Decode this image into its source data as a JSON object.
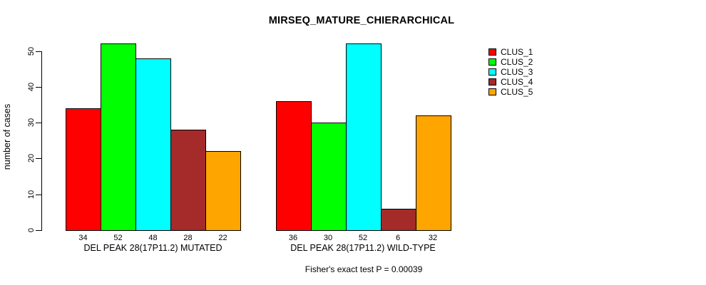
{
  "title": "MIRSEQ_MATURE_CHIERARCHICAL",
  "chart_data": {
    "type": "bar",
    "title": "MIRSEQ_MATURE_CHIERARCHICAL",
    "xlabel": "",
    "ylabel": "number of cases",
    "ylim": [
      0,
      50
    ],
    "yticks": [
      0,
      10,
      20,
      30,
      40,
      50
    ],
    "grid": false,
    "legend_position": "right-outside",
    "annotation": "Fisher's exact test P = 0.00039",
    "categories": [
      "DEL PEAK 28(17P11.2) MUTATED",
      "DEL PEAK 28(17P11.2) WILD-TYPE"
    ],
    "series": [
      {
        "name": "CLUS_1",
        "color": "#FF0000",
        "values": [
          34,
          36
        ]
      },
      {
        "name": "CLUS_2",
        "color": "#00FF00",
        "values": [
          52,
          30
        ]
      },
      {
        "name": "CLUS_3",
        "color": "#00FFFF",
        "values": [
          48,
          52
        ]
      },
      {
        "name": "CLUS_4",
        "color": "#A52A2A",
        "values": [
          28,
          6
        ]
      },
      {
        "name": "CLUS_5",
        "color": "#FFA500",
        "values": [
          22,
          32
        ]
      }
    ],
    "axis_color": "#000000",
    "background_color": "#FFFFFF"
  }
}
